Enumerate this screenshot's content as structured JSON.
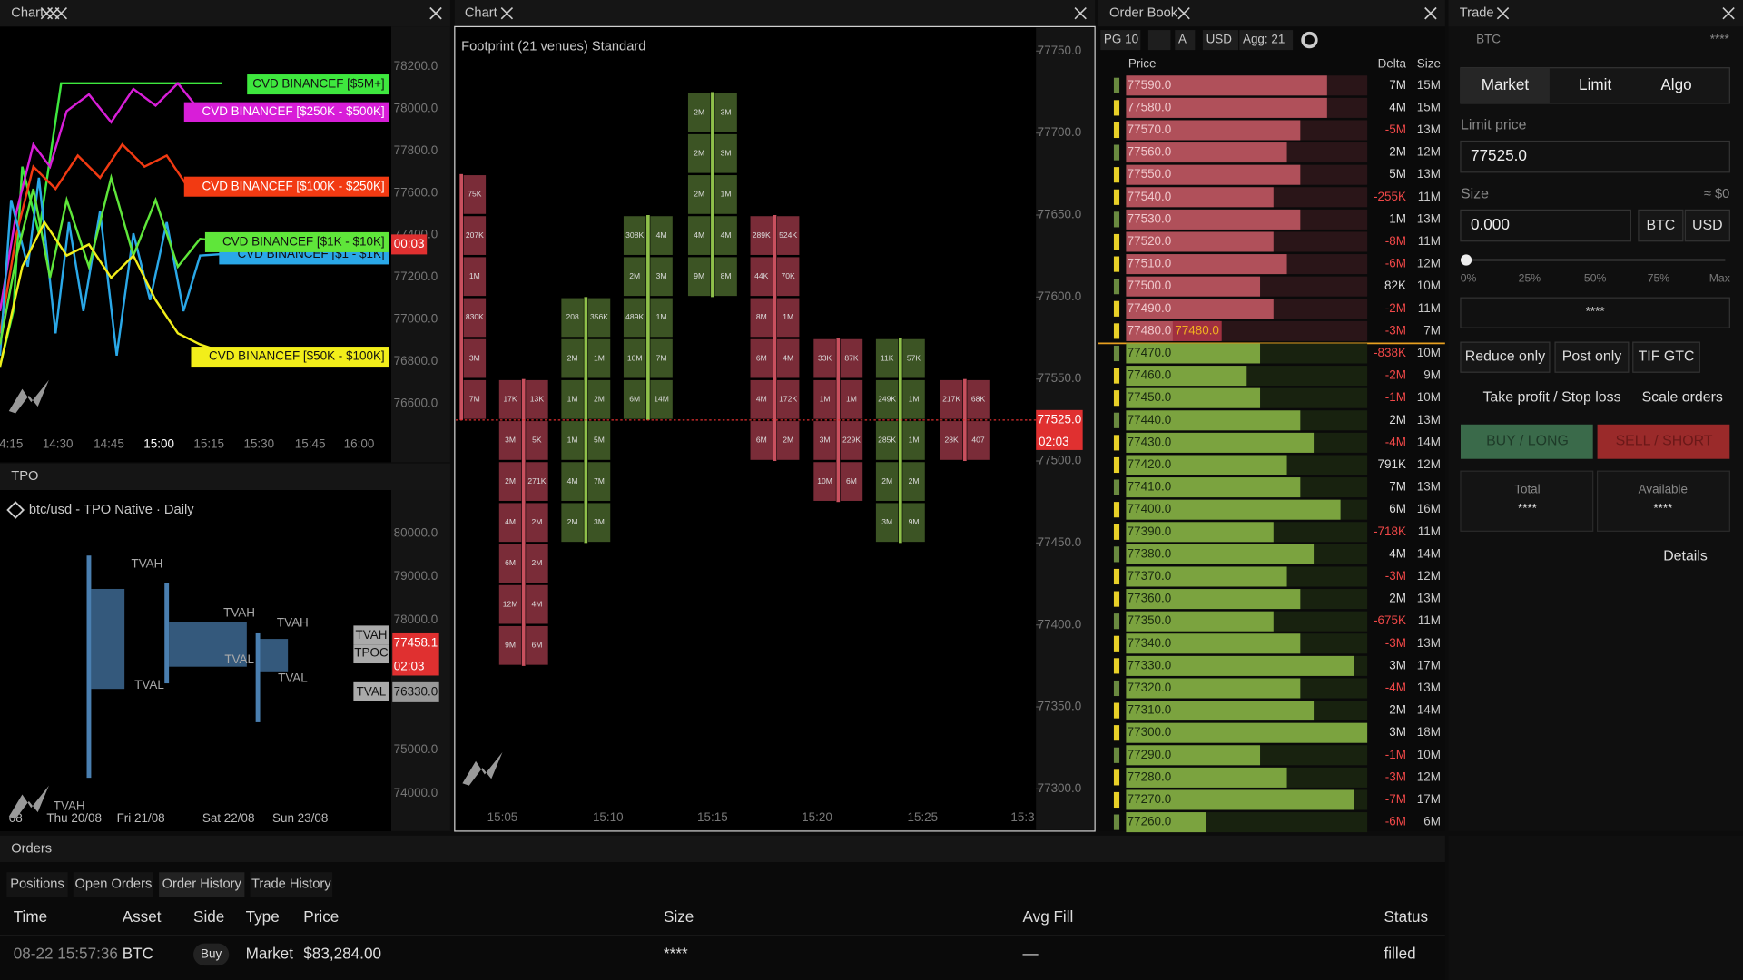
{
  "chart_panel": {
    "tab": "Chart",
    "y_labels": [
      "78200.0",
      "78000.0",
      "77800.0",
      "77600.0",
      "77400.0",
      "77200.0",
      "77000.0",
      "76800.0",
      "76600.0"
    ],
    "x_labels": [
      "4:15",
      "14:30",
      "14:45",
      "15:00",
      "15:15",
      "15:30",
      "15:45",
      "16:00"
    ],
    "series_labels": [
      {
        "text": "CVD BINANCEF [$5M+]",
        "color": "#3ee83e"
      },
      {
        "text": "CVD BINANCEF [$250K - $500K]",
        "color": "#d81ed8"
      },
      {
        "text": "CVD BINANCEF [$100K - $250K]",
        "color": "#f23a12"
      },
      {
        "text": "CVD BINANCEF [$1 - $1K]",
        "color": "#2aa8e8"
      },
      {
        "text": "CVD BINANCEF [$1K - $10K]",
        "color": "#5fe63a"
      },
      {
        "text": "CVD BINANCEF [$50K - $100K]",
        "color": "#f2ee1a"
      }
    ],
    "timer": "00:03"
  },
  "tpo_panel": {
    "tab": "TPO",
    "subtitle": "btc/usd - TPO Native · Daily",
    "y_labels": [
      "80000.0",
      "79000.0",
      "78000.0",
      "75000.0",
      "74000.0"
    ],
    "x_labels": [
      "08",
      "Thu 20/08",
      "Fri 21/08",
      "Sat 22/08",
      "Sun 23/08"
    ],
    "profile_labels": [
      "TVAH",
      "TVAH",
      "TVAH",
      "TVAL",
      "TVAL",
      "TVAL",
      "TVAH"
    ],
    "markers": {
      "tvah": "TVAH",
      "tpoc": "TPOC",
      "tval": "TVAL",
      "price": "77458.1",
      "timer": "02:03",
      "tval_price": "76330.0"
    }
  },
  "footprint_panel": {
    "tab": "Chart",
    "title": "Footprint (21 venues) Standard",
    "yticks": [
      {
        "value": 77750,
        "label": "77750.0"
      },
      {
        "value": 77700,
        "label": "77700.0"
      },
      {
        "value": 77650,
        "label": "77650.0"
      },
      {
        "value": 77600,
        "label": "77600.0"
      },
      {
        "value": 77550,
        "label": "77550.0"
      },
      {
        "value": 77500,
        "label": "77500.0"
      },
      {
        "value": 77450,
        "label": "77450.0"
      },
      {
        "value": 77400,
        "label": "77400.0"
      },
      {
        "value": 77350,
        "label": "77350.0"
      },
      {
        "value": 77300,
        "label": "77300.0"
      }
    ],
    "ylim": [
      77300,
      77750
    ],
    "x_labels": [
      "15:05",
      "15:10",
      "15:15",
      "15:20",
      "15:25",
      "15:3"
    ],
    "current_price": {
      "value": 77525,
      "label": "77525.0"
    },
    "timer": "02:03",
    "candles": [
      {
        "top": 77662.5,
        "color": "#7a2c38",
        "left": [],
        "right": [
          "75K",
          "207K",
          "1M",
          "830K",
          "3M",
          "7M"
        ]
      },
      {
        "top": 77537.5,
        "color": "#7a2c38",
        "left": [
          "17K",
          "3M",
          "2M",
          "4M",
          "6M",
          "12M",
          "9M"
        ],
        "right": [
          "13K",
          "5K",
          "271K",
          "2M",
          "2M",
          "4M",
          "6M"
        ]
      },
      {
        "top": 77587.5,
        "color": "#3c5424",
        "left": [
          "208",
          "2M",
          "1M",
          "1M",
          "4M",
          "2M"
        ],
        "right": [
          "356K",
          "1M",
          "2M",
          "5M",
          "7M",
          "3M"
        ]
      },
      {
        "top": 77637.5,
        "color": "#3c5424",
        "left": [
          "308K",
          "2M",
          "489K",
          "10M",
          "6M"
        ],
        "right": [
          "4M",
          "3M",
          "1M",
          "7M",
          "14M"
        ]
      },
      {
        "top": 77712.5,
        "color": "#3c5424",
        "left": [
          "2M",
          "2M",
          "2M",
          "4M",
          "9M"
        ],
        "right": [
          "3M",
          "3M",
          "1M",
          "4M",
          "8M"
        ]
      },
      {
        "top": 77637.5,
        "color": "#7a2c38",
        "left": [
          "289K",
          "44K",
          "8M",
          "6M",
          "4M",
          "6M"
        ],
        "right": [
          "524K",
          "70K",
          "1M",
          "4M",
          "172K",
          "2M"
        ]
      },
      {
        "top": 77562.5,
        "color": "#7a2c38",
        "left": [
          "33K",
          "1M",
          "3M",
          "10M"
        ],
        "right": [
          "87K",
          "1M",
          "229K",
          "6M"
        ]
      },
      {
        "top": 77562.5,
        "color": "#3c5424",
        "left": [
          "11K",
          "249K",
          "285K",
          "2M",
          "3M"
        ],
        "right": [
          "57K",
          "1M",
          "1M",
          "2M",
          "9M"
        ]
      },
      {
        "top": 77537.5,
        "color": "#7a2c38",
        "left": [
          "217K",
          "28K"
        ],
        "right": [
          "68K",
          "407"
        ]
      }
    ]
  },
  "orderbook": {
    "tab": "Order Book",
    "controls": [
      "PG 10",
      "A",
      "USD",
      "Agg: 21"
    ],
    "columns": [
      "Price",
      "Delta",
      "Size"
    ],
    "last_price": "77480.0",
    "prices": [
      "77590.0",
      "77580.0",
      "77570.0",
      "77560.0",
      "77550.0",
      "77540.0",
      "77530.0",
      "77520.0",
      "77510.0",
      "77500.0",
      "77490.0",
      "77480.0",
      "77470.0",
      "77460.0",
      "77450.0",
      "77440.0",
      "77430.0",
      "77420.0",
      "77410.0",
      "77400.0",
      "77390.0",
      "77380.0",
      "77370.0",
      "77360.0",
      "77350.0",
      "77340.0",
      "77330.0",
      "77320.0",
      "77310.0",
      "77300.0",
      "77290.0",
      "77280.0",
      "77270.0",
      "77260.0"
    ],
    "deltas": [
      "7M",
      "4M",
      "-5M",
      "2M",
      "5M",
      "-255K",
      "1M",
      "-8M",
      "-6M",
      "82K",
      "-2M",
      "-3M",
      "-838K",
      "-2M",
      "-1M",
      "2M",
      "-4M",
      "791K",
      "7M",
      "6M",
      "-718K",
      "4M",
      "-3M",
      "2M",
      "-675K",
      "-3M",
      "3M",
      "-4M",
      "2M",
      "3M",
      "-1M",
      "-3M",
      "-7M",
      "-6M"
    ],
    "sizes": [
      15,
      15,
      13,
      12,
      13,
      11,
      13,
      11,
      12,
      10,
      11,
      7,
      10,
      9,
      10,
      13,
      14,
      12,
      13,
      16,
      11,
      14,
      12,
      13,
      11,
      13,
      17,
      13,
      14,
      18,
      10,
      12,
      17,
      6
    ],
    "size_labels": [
      "15M",
      "15M",
      "13M",
      "12M",
      "13M",
      "11M",
      "13M",
      "11M",
      "12M",
      "10M",
      "11M",
      "7M",
      "10M",
      "9M",
      "10M",
      "13M",
      "14M",
      "12M",
      "13M",
      "16M",
      "11M",
      "14M",
      "12M",
      "13M",
      "11M",
      "13M",
      "17M",
      "13M",
      "14M",
      "18M",
      "10M",
      "12M",
      "17M",
      "6M"
    ],
    "ask_count": 12
  },
  "trade": {
    "tab": "Trade",
    "asset": "BTC",
    "balance": "****",
    "order_types": [
      "Market",
      "Limit",
      "Algo"
    ],
    "limit_price_label": "Limit price",
    "limit_price": "77525.0",
    "size_label": "Size",
    "size_usd": "≈ $0",
    "size": "0.000",
    "units": [
      "BTC",
      "USD"
    ],
    "slider": [
      "0%",
      "25%",
      "50%",
      "75%",
      "Max"
    ],
    "masked": "****",
    "options": [
      "Reduce only",
      "Post only",
      "TIF GTC"
    ],
    "extras": [
      "Take profit / Stop loss",
      "Scale orders"
    ],
    "buy": "BUY / LONG",
    "sell": "SELL / SHORT",
    "total_label": "Total",
    "total": "****",
    "available_label": "Available",
    "available": "****",
    "details": "Details"
  },
  "orders": {
    "tab": "Orders",
    "tabs": [
      "Positions",
      "Open Orders",
      "Order History",
      "Trade History"
    ],
    "columns": [
      "Time",
      "Asset",
      "Side",
      "Type",
      "Price",
      "Size",
      "Avg Fill",
      "Status"
    ],
    "rows": [
      [
        "08-22 15:57:36",
        "BTC",
        "Buy",
        "Market",
        "$83,284.00",
        "****",
        "—",
        "filled"
      ]
    ]
  }
}
